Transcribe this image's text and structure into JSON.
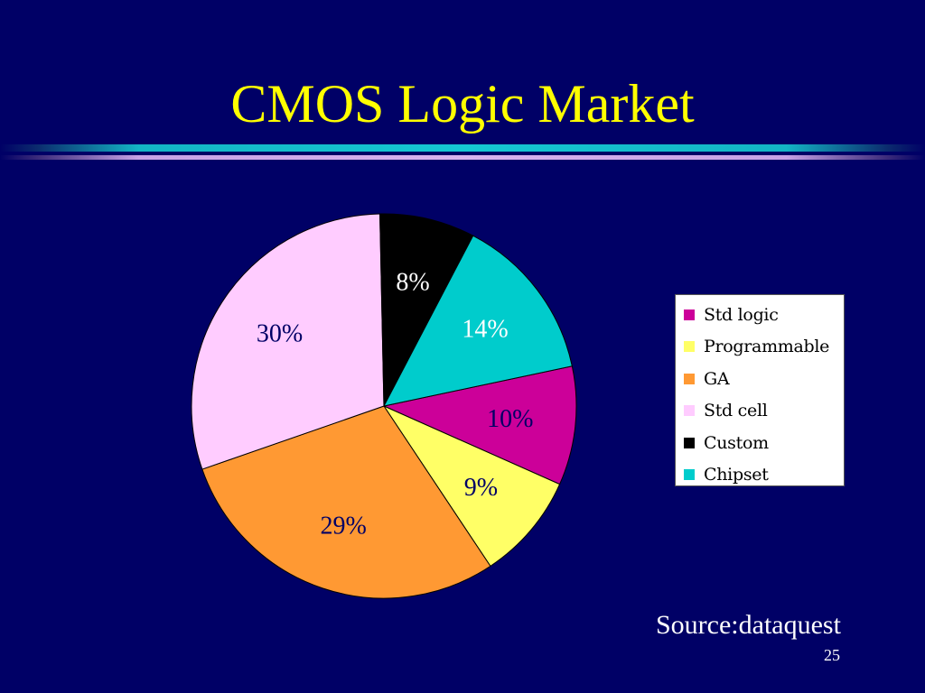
{
  "slide": {
    "title": "CMOS Logic Market",
    "title_color": "#ffff00",
    "source": "Source:dataquest",
    "page_number": "25"
  },
  "chart_data": {
    "type": "pie",
    "categories": [
      "Std logic",
      "Programmable",
      "GA",
      "Std cell",
      "Custom",
      "Chipset"
    ],
    "values": [
      10,
      9,
      29,
      30,
      8,
      14
    ],
    "data_labels": [
      "10%",
      "9%",
      "29%",
      "30%",
      "8%",
      "14%"
    ],
    "colors": [
      "#cc0099",
      "#ffff66",
      "#ff9933",
      "#ffccff",
      "#000000",
      "#00cccc"
    ],
    "label_colors": [
      "#000066",
      "#000066",
      "#000066",
      "#000066",
      "#ffffff",
      "#ffffff"
    ],
    "legend_position": "right",
    "title": "",
    "legend": [
      {
        "label": "Std logic",
        "color": "#cc0099"
      },
      {
        "label": "Programmable",
        "color": "#ffff66"
      },
      {
        "label": "GA",
        "color": "#ff9933"
      },
      {
        "label": "Std cell",
        "color": "#ffccff"
      },
      {
        "label": "Custom",
        "color": "#000000"
      },
      {
        "label": "Chipset",
        "color": "#00cccc"
      }
    ]
  }
}
